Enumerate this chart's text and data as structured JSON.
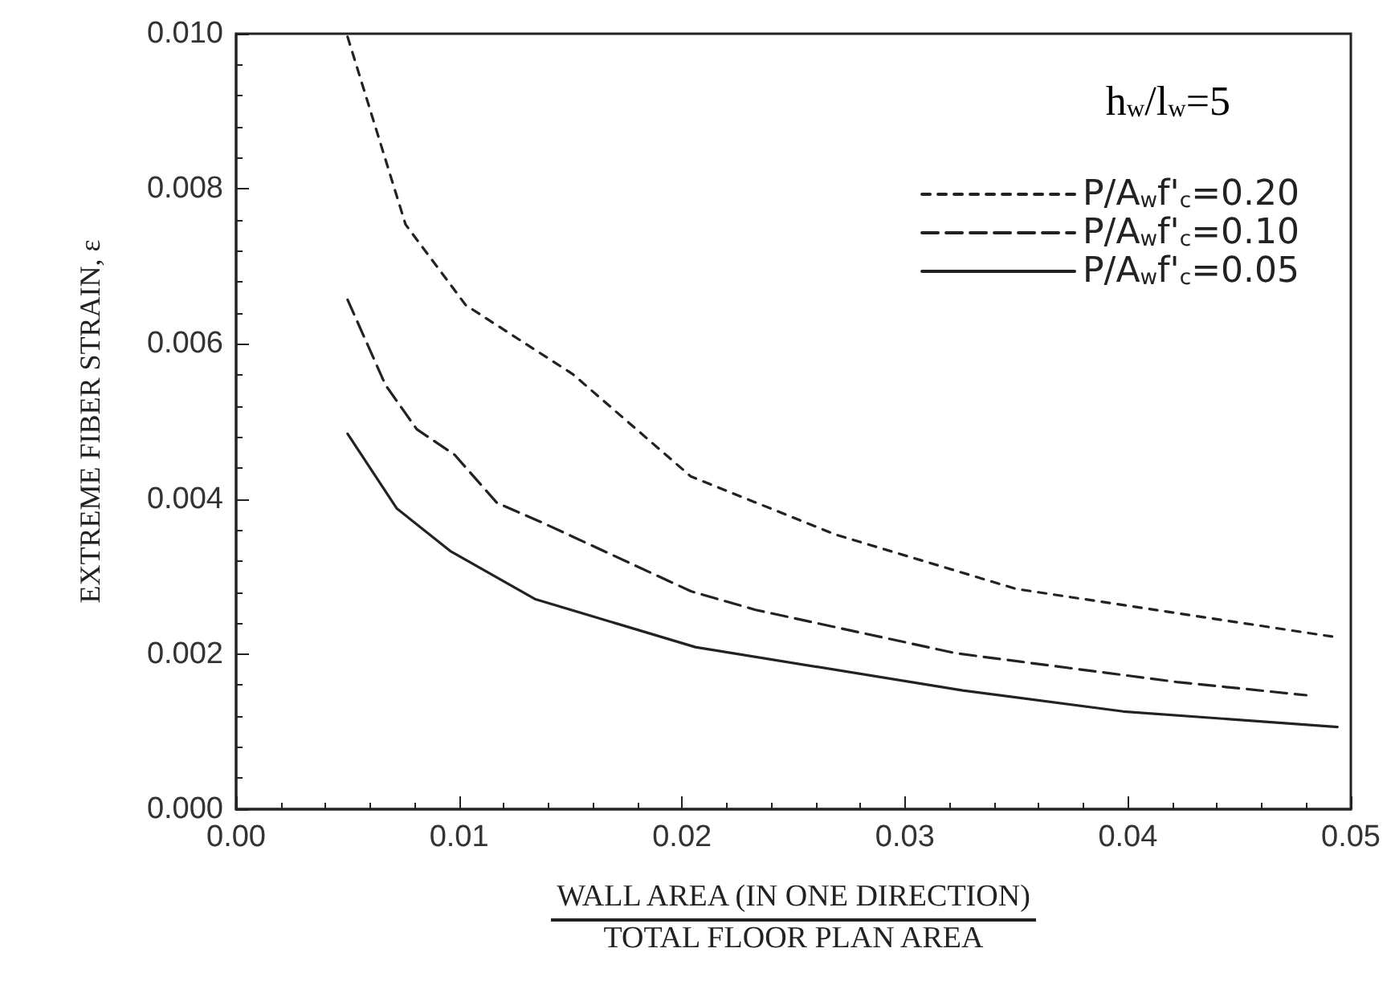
{
  "chart_data": {
    "type": "line",
    "xlabel": "WALL AREA (IN ONE DIRECTION)\nTOTAL FLOOR PLAN AREA",
    "ylabel": "EXTREME FIBER STRAIN, ε",
    "legend_title": "h$_{w}$/l$_{w}$=5",
    "series": [
      {
        "name": "P/A$_{w}$f'$_{c}$=0.20",
        "color": "#222222",
        "line_style": "dotted",
        "x": [
          0.005,
          0.0076,
          0.0103,
          0.0151,
          0.0204,
          0.0269,
          0.035,
          0.0493
        ],
        "values": [
          0.00996,
          0.00754,
          0.0065,
          0.00561,
          0.00429,
          0.00354,
          0.00284,
          0.00222
        ]
      },
      {
        "name": "P/A$_{w}$f'$_{c}$=0.10",
        "color": "#222222",
        "line_style": "dashed",
        "x": [
          0.005,
          0.0067,
          0.0081,
          0.0098,
          0.0117,
          0.0137,
          0.0204,
          0.0233,
          0.0323,
          0.0422,
          0.048
        ],
        "values": [
          0.00657,
          0.00547,
          0.0049,
          0.00457,
          0.00395,
          0.0037,
          0.00281,
          0.00257,
          0.00201,
          0.00164,
          0.00147
        ]
      },
      {
        "name": "P/A$_{w}$f'$_{c}$=0.05",
        "color": "#222222",
        "line_style": "solid",
        "x": [
          0.005,
          0.0072,
          0.0096,
          0.0134,
          0.0206,
          0.0326,
          0.0398,
          0.0494
        ],
        "values": [
          0.00484,
          0.00388,
          0.00333,
          0.00271,
          0.00209,
          0.00153,
          0.00126,
          0.00106
        ]
      }
    ],
    "xlim": [
      0,
      0.05
    ],
    "xticks": [
      {
        "value": 0,
        "label": "0.00"
      },
      0.01,
      0.02,
      0.03,
      0.04,
      0.05
    ],
    "ylim": [
      0,
      0.01
    ],
    "yticks": [
      {
        "value": 0,
        "label": "0.000"
      },
      {
        "value": 0.002,
        "label": "0.002"
      },
      {
        "value": 0.004,
        "label": "0.004"
      },
      {
        "value": 0.006,
        "label": "0.006"
      },
      {
        "value": 0.008,
        "label": "0.008"
      },
      {
        "value": 0.01,
        "label": "0.010"
      }
    ],
    "grid": false,
    "legend": "top right",
    "marker": "none"
  }
}
